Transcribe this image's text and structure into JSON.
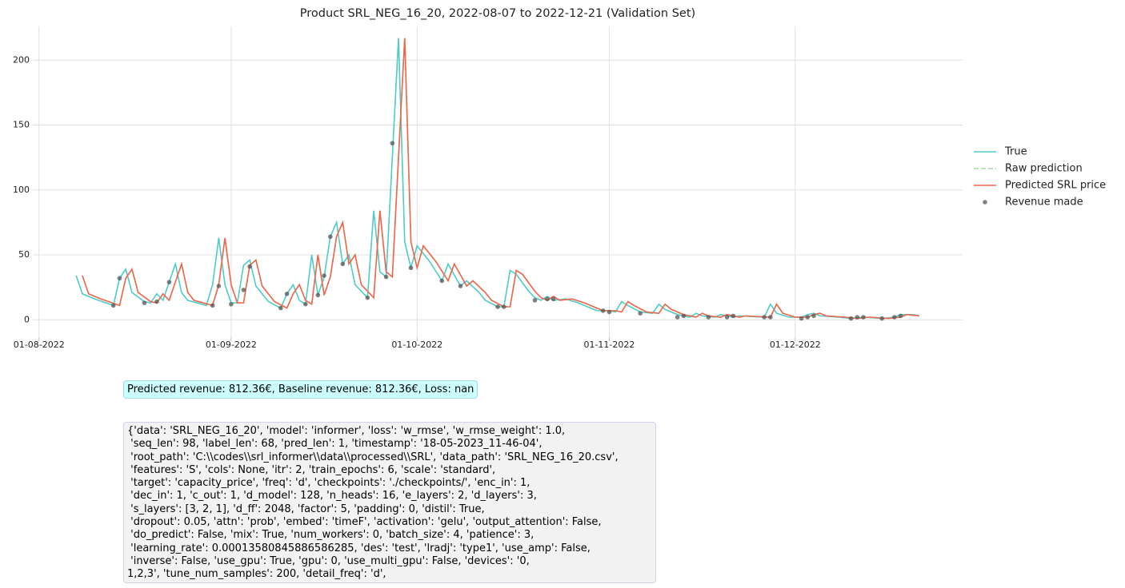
{
  "chart_data": {
    "type": "line",
    "title": "Product SRL_NEG_16_20, 2022-08-07 to 2022-12-21 (Validation Set)",
    "xlim": [
      "2022-07-31",
      "2022-12-28"
    ],
    "xticks": [
      {
        "value": "2022-08-01",
        "label": "01-08-2022"
      },
      {
        "value": "2022-09-01",
        "label": "01-09-2022"
      },
      {
        "value": "2022-10-01",
        "label": "01-10-2022"
      },
      {
        "value": "2022-11-01",
        "label": "01-11-2022"
      },
      {
        "value": "2022-12-01",
        "label": "01-12-2022"
      }
    ],
    "ylim": [
      -14,
      226
    ],
    "yticks": [
      0,
      50,
      100,
      150,
      200
    ],
    "grid": true,
    "legend": "right",
    "series": [
      {
        "name": "True",
        "color": "#4ecbc8",
        "linestyle": "solid",
        "x": [
          "2022-08-07",
          "2022-08-08",
          "2022-08-10",
          "2022-08-13",
          "2022-08-14",
          "2022-08-15",
          "2022-08-16",
          "2022-08-18",
          "2022-08-19",
          "2022-08-20",
          "2022-08-21",
          "2022-08-23",
          "2022-08-24",
          "2022-08-25",
          "2022-08-28",
          "2022-08-29",
          "2022-08-30",
          "2022-08-31",
          "2022-09-01",
          "2022-09-02",
          "2022-09-03",
          "2022-09-04",
          "2022-09-05",
          "2022-09-07",
          "2022-09-09",
          "2022-09-10",
          "2022-09-11",
          "2022-09-12",
          "2022-09-13",
          "2022-09-14",
          "2022-09-15",
          "2022-09-16",
          "2022-09-17",
          "2022-09-18",
          "2022-09-19",
          "2022-09-20",
          "2022-09-21",
          "2022-09-23",
          "2022-09-24",
          "2022-09-25",
          "2022-09-26",
          "2022-09-28",
          "2022-09-29",
          "2022-09-30",
          "2022-10-01",
          "2022-10-03",
          "2022-10-05",
          "2022-10-06",
          "2022-10-08",
          "2022-10-09",
          "2022-10-11",
          "2022-10-12",
          "2022-10-14",
          "2022-10-15",
          "2022-10-16",
          "2022-10-17",
          "2022-10-19",
          "2022-10-20",
          "2022-10-21",
          "2022-10-22",
          "2022-10-23",
          "2022-10-25",
          "2022-10-27",
          "2022-10-29",
          "2022-10-30",
          "2022-11-01",
          "2022-11-02",
          "2022-11-03",
          "2022-11-04",
          "2022-11-06",
          "2022-11-08",
          "2022-11-09",
          "2022-11-10",
          "2022-11-12",
          "2022-11-14",
          "2022-11-15",
          "2022-11-16",
          "2022-11-18",
          "2022-11-19",
          "2022-11-21",
          "2022-11-22",
          "2022-11-26",
          "2022-11-27",
          "2022-11-28",
          "2022-11-30",
          "2022-12-02",
          "2022-12-03",
          "2022-12-04",
          "2022-12-05",
          "2022-12-08",
          "2022-12-10",
          "2022-12-12",
          "2022-12-15",
          "2022-12-17",
          "2022-12-18",
          "2022-12-20",
          "2022-12-21"
        ],
        "values": [
          34,
          20,
          16,
          11,
          32,
          39,
          21,
          14,
          13,
          20,
          15,
          43,
          21,
          15,
          11,
          27,
          63,
          27,
          13,
          13,
          42,
          46,
          26,
          14,
          9,
          20,
          27,
          15,
          12,
          50,
          19,
          33,
          64,
          75,
          43,
          50,
          27,
          17,
          84,
          37,
          33,
          217,
          60,
          40,
          57,
          45,
          30,
          43,
          26,
          30,
          21,
          15,
          10,
          10,
          38,
          35,
          22,
          17,
          15,
          18,
          15,
          16,
          13,
          9,
          7,
          7,
          6,
          14,
          11,
          6,
          5,
          12,
          8,
          4,
          2,
          5,
          3,
          2,
          4,
          2,
          3,
          2,
          12,
          5,
          2,
          2,
          4,
          5,
          3,
          2,
          1,
          2,
          1,
          2,
          4,
          4,
          3
        ]
      },
      {
        "name": "Raw prediction",
        "color": "#a8d8a8",
        "linestyle": "dashed",
        "x": [
          "2022-08-08",
          "2022-08-09",
          "2022-08-11",
          "2022-08-14",
          "2022-08-15",
          "2022-08-16",
          "2022-08-17",
          "2022-08-19",
          "2022-08-20",
          "2022-08-21",
          "2022-08-22",
          "2022-08-24",
          "2022-08-25",
          "2022-08-26",
          "2022-08-29",
          "2022-08-30",
          "2022-08-31",
          "2022-09-01",
          "2022-09-02",
          "2022-09-03",
          "2022-09-04",
          "2022-09-05",
          "2022-09-06",
          "2022-09-08",
          "2022-09-10",
          "2022-09-11",
          "2022-09-12",
          "2022-09-13",
          "2022-09-14",
          "2022-09-15",
          "2022-09-16",
          "2022-09-17",
          "2022-09-18",
          "2022-09-19",
          "2022-09-20",
          "2022-09-21",
          "2022-09-22",
          "2022-09-24",
          "2022-09-25",
          "2022-09-26",
          "2022-09-27",
          "2022-09-29",
          "2022-09-30",
          "2022-10-01",
          "2022-10-02",
          "2022-10-04",
          "2022-10-06",
          "2022-10-07",
          "2022-10-09",
          "2022-10-10",
          "2022-10-12",
          "2022-10-13",
          "2022-10-15",
          "2022-10-16",
          "2022-10-17",
          "2022-10-18",
          "2022-10-20",
          "2022-10-21",
          "2022-10-22",
          "2022-10-23",
          "2022-10-24",
          "2022-10-26",
          "2022-10-28",
          "2022-10-30",
          "2022-10-31",
          "2022-11-02",
          "2022-11-03",
          "2022-11-04",
          "2022-11-05",
          "2022-11-07",
          "2022-11-09",
          "2022-11-10",
          "2022-11-11",
          "2022-11-13",
          "2022-11-15",
          "2022-11-16",
          "2022-11-17",
          "2022-11-19",
          "2022-11-20",
          "2022-11-22",
          "2022-11-23",
          "2022-11-27",
          "2022-11-28",
          "2022-11-29",
          "2022-12-01",
          "2022-12-03",
          "2022-12-04",
          "2022-12-05",
          "2022-12-06",
          "2022-12-09",
          "2022-12-11",
          "2022-12-13",
          "2022-12-16",
          "2022-12-18",
          "2022-12-19",
          "2022-12-21"
        ],
        "values": [
          34,
          20,
          16,
          11,
          32,
          39,
          21,
          14,
          13,
          20,
          15,
          43,
          21,
          15,
          11,
          27,
          63,
          27,
          13,
          13,
          42,
          46,
          26,
          14,
          9,
          20,
          27,
          15,
          12,
          50,
          19,
          33,
          64,
          75,
          43,
          50,
          27,
          17,
          84,
          37,
          33,
          217,
          60,
          40,
          57,
          45,
          30,
          43,
          26,
          30,
          21,
          15,
          10,
          10,
          38,
          35,
          22,
          17,
          15,
          18,
          15,
          16,
          13,
          9,
          7,
          7,
          6,
          14,
          11,
          6,
          5,
          12,
          8,
          4,
          2,
          5,
          3,
          2,
          4,
          2,
          3,
          2,
          12,
          5,
          2,
          2,
          4,
          5,
          3,
          2,
          1,
          2,
          1,
          2,
          4,
          3
        ]
      },
      {
        "name": "Predicted SRL price",
        "color": "#f0654a",
        "linestyle": "solid",
        "x": [
          "2022-08-08",
          "2022-08-09",
          "2022-08-11",
          "2022-08-14",
          "2022-08-15",
          "2022-08-16",
          "2022-08-17",
          "2022-08-19",
          "2022-08-20",
          "2022-08-21",
          "2022-08-22",
          "2022-08-24",
          "2022-08-25",
          "2022-08-26",
          "2022-08-29",
          "2022-08-30",
          "2022-08-31",
          "2022-09-01",
          "2022-09-02",
          "2022-09-03",
          "2022-09-04",
          "2022-09-05",
          "2022-09-06",
          "2022-09-08",
          "2022-09-10",
          "2022-09-11",
          "2022-09-12",
          "2022-09-13",
          "2022-09-14",
          "2022-09-15",
          "2022-09-16",
          "2022-09-17",
          "2022-09-18",
          "2022-09-19",
          "2022-09-20",
          "2022-09-21",
          "2022-09-22",
          "2022-09-24",
          "2022-09-25",
          "2022-09-26",
          "2022-09-27",
          "2022-09-29",
          "2022-09-30",
          "2022-10-01",
          "2022-10-02",
          "2022-10-04",
          "2022-10-06",
          "2022-10-07",
          "2022-10-09",
          "2022-10-10",
          "2022-10-12",
          "2022-10-13",
          "2022-10-15",
          "2022-10-16",
          "2022-10-17",
          "2022-10-18",
          "2022-10-20",
          "2022-10-21",
          "2022-10-22",
          "2022-10-23",
          "2022-10-24",
          "2022-10-26",
          "2022-10-28",
          "2022-10-30",
          "2022-10-31",
          "2022-11-02",
          "2022-11-03",
          "2022-11-04",
          "2022-11-05",
          "2022-11-07",
          "2022-11-09",
          "2022-11-10",
          "2022-11-11",
          "2022-11-13",
          "2022-11-15",
          "2022-11-16",
          "2022-11-17",
          "2022-11-19",
          "2022-11-20",
          "2022-11-22",
          "2022-11-23",
          "2022-11-27",
          "2022-11-28",
          "2022-11-29",
          "2022-12-01",
          "2022-12-03",
          "2022-12-04",
          "2022-12-05",
          "2022-12-06",
          "2022-12-09",
          "2022-12-11",
          "2022-12-13",
          "2022-12-16",
          "2022-12-18",
          "2022-12-19",
          "2022-12-21"
        ],
        "values": [
          34,
          20,
          16,
          11,
          32,
          39,
          21,
          14,
          13,
          20,
          15,
          43,
          21,
          15,
          11,
          27,
          63,
          27,
          13,
          13,
          42,
          46,
          26,
          14,
          9,
          20,
          27,
          15,
          12,
          50,
          19,
          33,
          64,
          75,
          43,
          50,
          27,
          17,
          84,
          37,
          33,
          217,
          60,
          40,
          57,
          45,
          30,
          43,
          26,
          30,
          21,
          15,
          10,
          10,
          38,
          35,
          22,
          17,
          15,
          18,
          15,
          16,
          13,
          9,
          7,
          7,
          6,
          14,
          11,
          6,
          5,
          12,
          8,
          4,
          2,
          5,
          3,
          2,
          4,
          2,
          3,
          2,
          12,
          5,
          2,
          2,
          4,
          5,
          3,
          2,
          1,
          2,
          1,
          2,
          4,
          3
        ]
      },
      {
        "name": "Revenue made",
        "color": "#555555",
        "marker": "dot",
        "x": [
          "2022-08-13",
          "2022-08-14",
          "2022-08-18",
          "2022-08-20",
          "2022-08-22",
          "2022-08-29",
          "2022-08-30",
          "2022-09-01",
          "2022-09-03",
          "2022-09-04",
          "2022-09-09",
          "2022-09-10",
          "2022-09-13",
          "2022-09-15",
          "2022-09-16",
          "2022-09-17",
          "2022-09-19",
          "2022-09-23",
          "2022-09-26",
          "2022-09-27",
          "2022-09-30",
          "2022-10-05",
          "2022-10-08",
          "2022-10-14",
          "2022-10-15",
          "2022-10-20",
          "2022-10-22",
          "2022-10-23",
          "2022-10-31",
          "2022-11-01",
          "2022-11-06",
          "2022-11-12",
          "2022-11-13",
          "2022-11-17",
          "2022-11-20",
          "2022-11-21",
          "2022-11-26",
          "2022-11-27",
          "2022-12-02",
          "2022-12-03",
          "2022-12-04",
          "2022-12-10",
          "2022-12-11",
          "2022-12-12",
          "2022-12-15",
          "2022-12-17",
          "2022-12-18"
        ],
        "values": [
          11,
          32,
          13,
          14,
          29,
          11,
          26,
          12,
          23,
          41,
          9,
          20,
          12,
          19,
          34,
          64,
          43,
          17,
          33,
          136,
          40,
          30,
          26,
          10,
          10,
          15,
          16,
          16,
          7,
          6,
          5,
          2,
          3,
          2,
          2,
          3,
          2,
          2,
          1,
          2,
          3,
          1,
          2,
          2,
          1,
          2,
          3
        ]
      }
    ]
  },
  "revenue_box": {
    "text": "Predicted revenue: 812.36€, Baseline revenue: 812.36€, Loss: nan"
  },
  "config_box": {
    "lines": [
      "{'data': 'SRL_NEG_16_20', 'model': 'informer', 'loss': 'w_rmse', 'w_rmse_weight': 1.0,",
      " 'seq_len': 98, 'label_len': 68, 'pred_len': 1, 'timestamp': '18-05-2023_11-46-04',",
      " 'root_path': 'C:\\\\codes\\\\srl_informer\\\\data\\\\processed\\\\SRL', 'data_path': 'SRL_NEG_16_20.csv',",
      " 'features': 'S', 'cols': None, 'itr': 2, 'train_epochs': 6, 'scale': 'standard',",
      " 'target': 'capacity_price', 'freq': 'd', 'checkpoints': './checkpoints/', 'enc_in': 1,",
      " 'dec_in': 1, 'c_out': 1, 'd_model': 128, 'n_heads': 16, 'e_layers': 2, 'd_layers': 3,",
      " 's_layers': [3, 2, 1], 'd_ff': 2048, 'factor': 5, 'padding': 0, 'distil': True,",
      " 'dropout': 0.05, 'attn': 'prob', 'embed': 'timeF', 'activation': 'gelu', 'output_attention': False,",
      " 'do_predict': False, 'mix': True, 'num_workers': 0, 'batch_size': 4, 'patience': 3,",
      " 'learning_rate': 0.00013580845886586285, 'des': 'test', 'lradj': 'type1', 'use_amp': False,",
      " 'inverse': False, 'use_gpu': True, 'gpu': 0, 'use_multi_gpu': False, 'devices': '0,",
      "1,2,3', 'tune_num_samples': 200, 'detail_freq': 'd',"
    ]
  }
}
